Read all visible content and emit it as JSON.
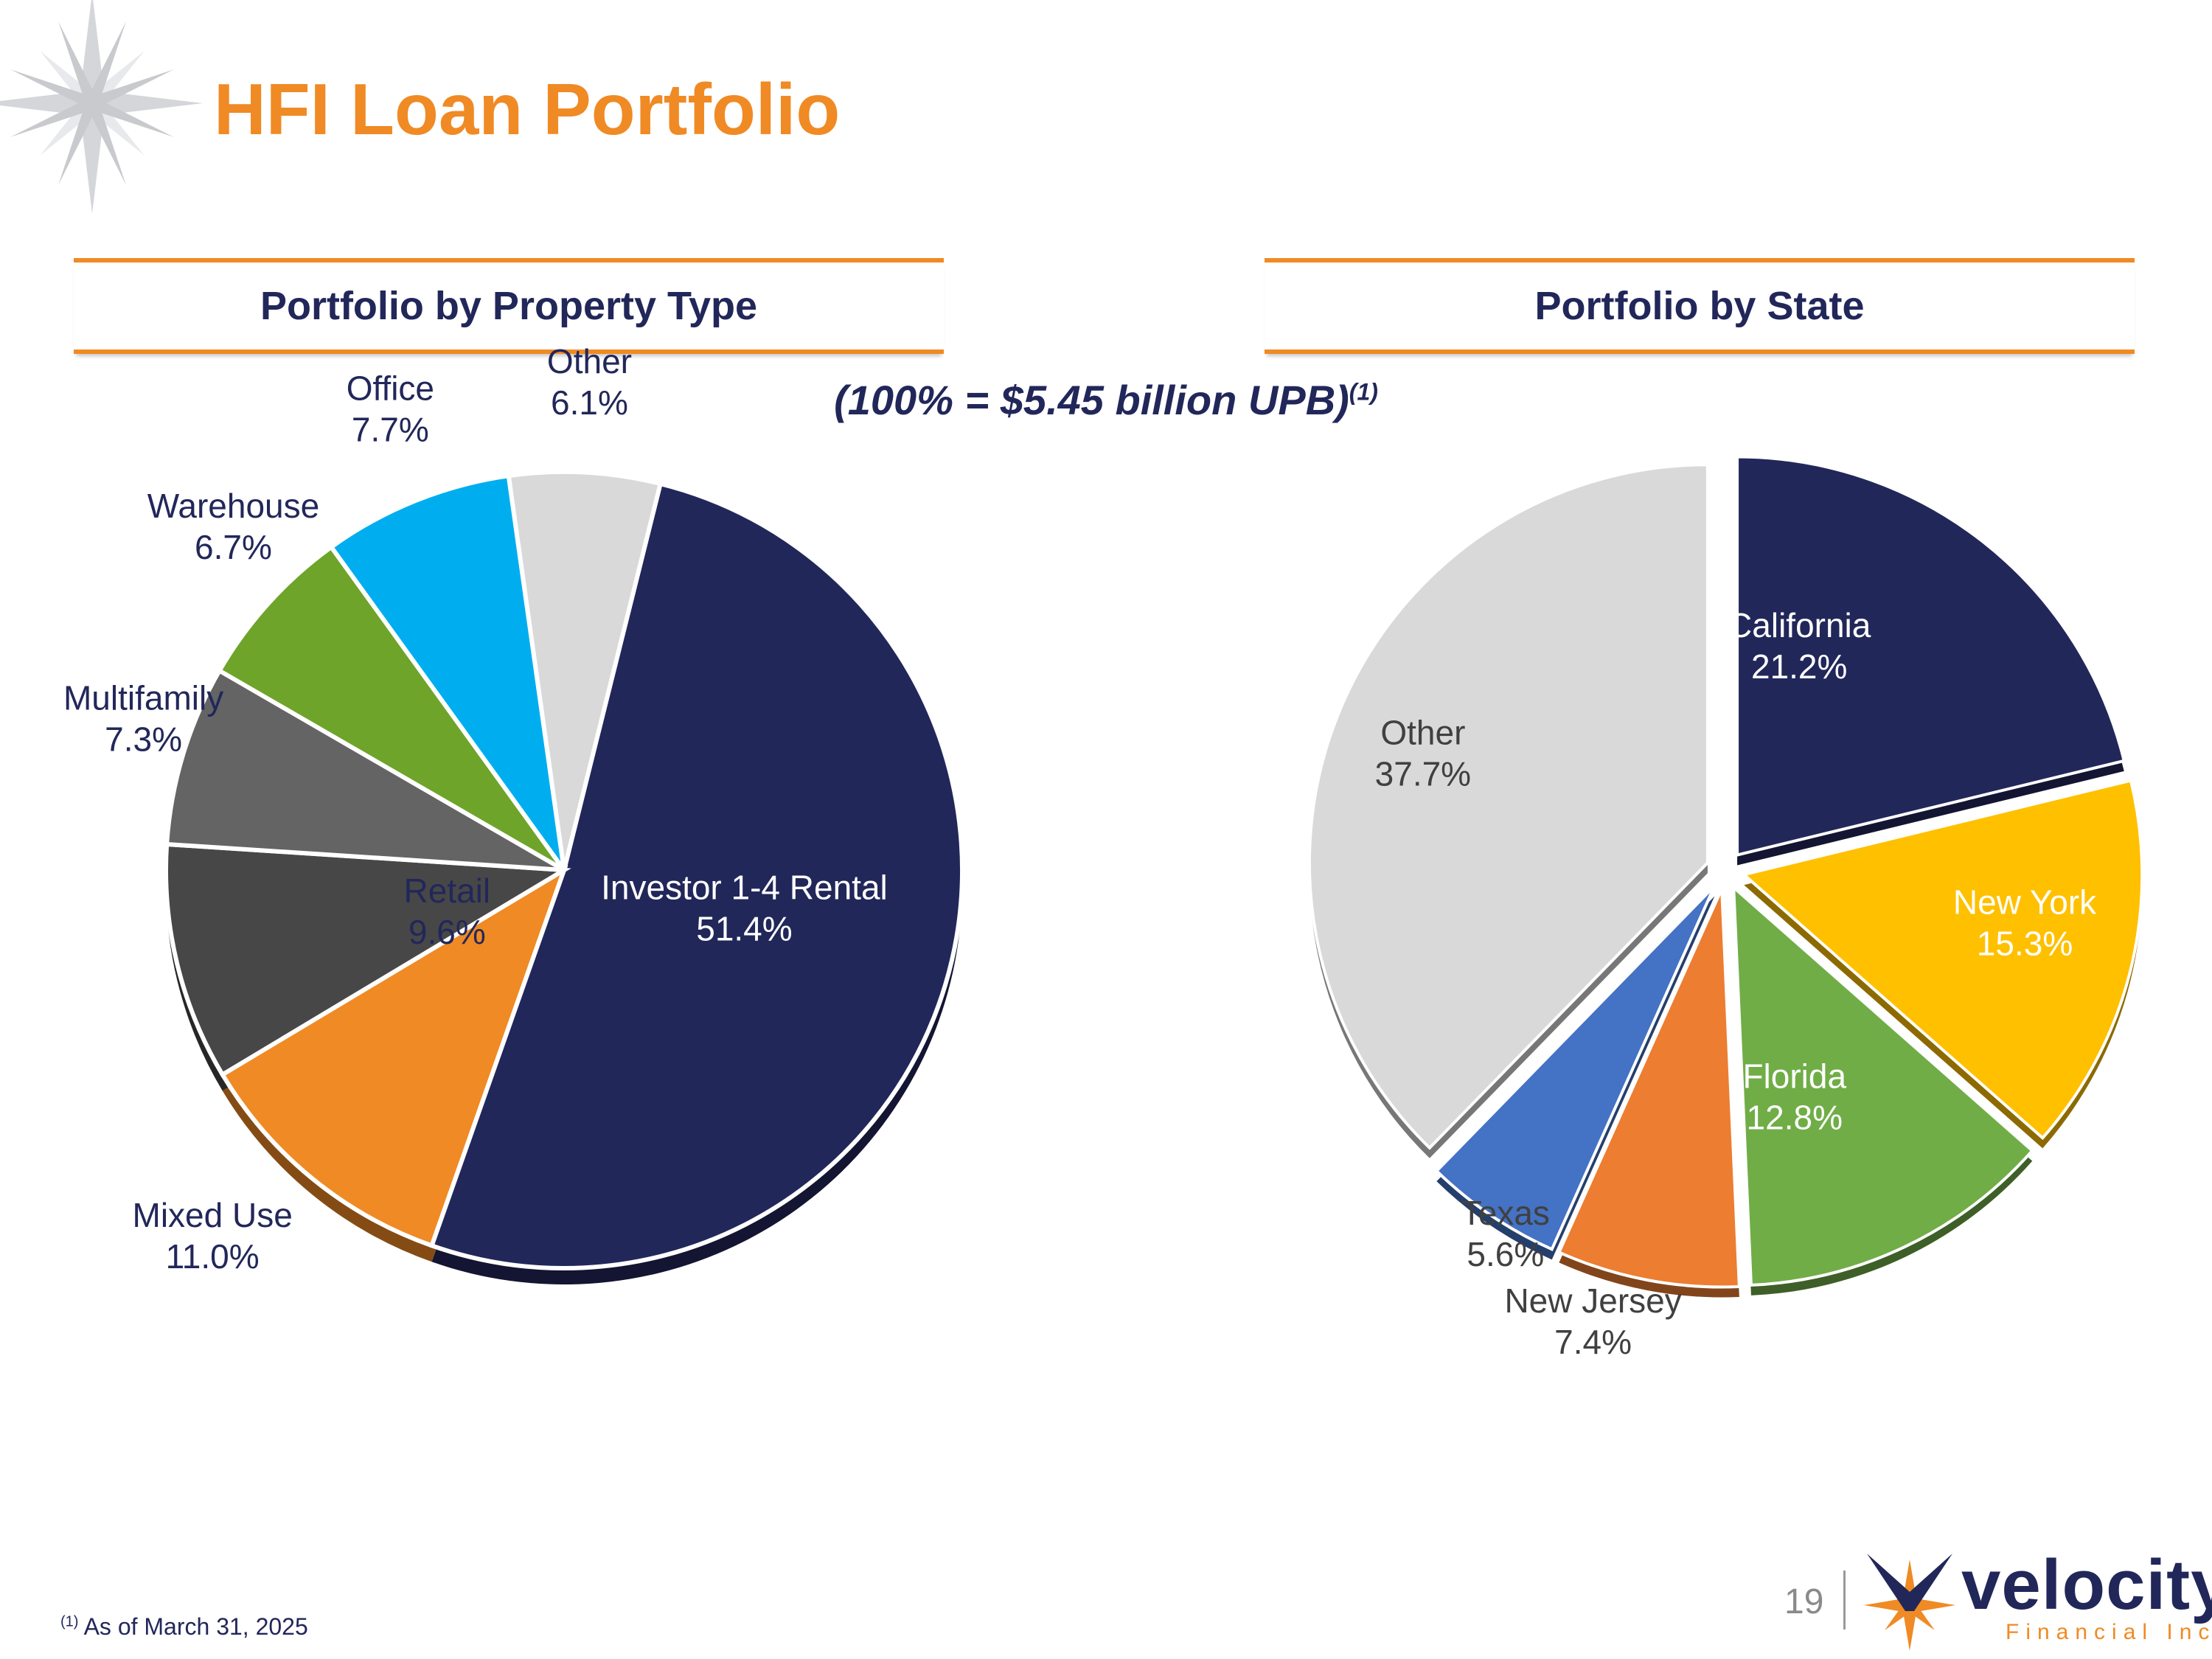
{
  "slide": {
    "title": "HFI Loan Portfolio",
    "upb_note": "(100% = $5.45 billion UPB)",
    "upb_note_ref": "(1)",
    "footnote_ref": "(1)",
    "footnote_text": "As of March 31, 2025",
    "page_number": "19",
    "logo_word": "velocity",
    "logo_sub": "Financial Inc."
  },
  "colors": {
    "accent": "#F08A24",
    "navy": "#22275A"
  },
  "chart_data": [
    {
      "type": "pie",
      "title": "Portfolio by Property Type",
      "slices": [
        {
          "label": "Investor 1-4 Rental",
          "value": 51.4,
          "display": "51.4%",
          "color": "#22275A",
          "label_color": "#FFFFFF",
          "position": "inside"
        },
        {
          "label": "Mixed Use",
          "value": 11.0,
          "display": "11.0%",
          "color": "#F08A24",
          "label_color": "#22275A",
          "position": "outside"
        },
        {
          "label": "Retail",
          "value": 9.6,
          "display": "9.6%",
          "color": "#474747",
          "label_color": "#22275A",
          "position": "inside"
        },
        {
          "label": "Multifamily",
          "value": 7.3,
          "display": "7.3%",
          "color": "#646464",
          "label_color": "#22275A",
          "position": "outside"
        },
        {
          "label": "Warehouse",
          "value": 6.7,
          "display": "6.7%",
          "color": "#6EA42A",
          "label_color": "#22275A",
          "position": "outside"
        },
        {
          "label": "Office",
          "value": 7.7,
          "display": "7.7%",
          "color": "#00AEEF",
          "label_color": "#22275A",
          "position": "outside"
        },
        {
          "label": "Other",
          "value": 6.1,
          "display": "6.1%",
          "color": "#D9D9D9",
          "label_color": "#22275A",
          "position": "outside"
        }
      ]
    },
    {
      "type": "pie",
      "title": "Portfolio by State",
      "slices": [
        {
          "label": "California",
          "value": 21.2,
          "display": "21.2%",
          "color": "#22275A",
          "label_color": "#FFFFFF",
          "position": "inside"
        },
        {
          "label": "New York",
          "value": 15.3,
          "display": "15.3%",
          "color": "#FFC000",
          "label_color": "#FFFFFF",
          "position": "inside"
        },
        {
          "label": "Florida",
          "value": 12.8,
          "display": "12.8%",
          "color": "#70AD47",
          "label_color": "#FFFFFF",
          "position": "inside"
        },
        {
          "label": "New Jersey",
          "value": 7.4,
          "display": "7.4%",
          "color": "#ED7D31",
          "label_color": "#404040",
          "position": "outside"
        },
        {
          "label": "Texas",
          "value": 5.6,
          "display": "5.6%",
          "color": "#4472C4",
          "label_color": "#404040",
          "position": "outside"
        },
        {
          "label": "Other",
          "value": 37.7,
          "display": "37.7%",
          "color": "#D9D9D9",
          "label_color": "#404040",
          "position": "inside"
        }
      ]
    }
  ]
}
